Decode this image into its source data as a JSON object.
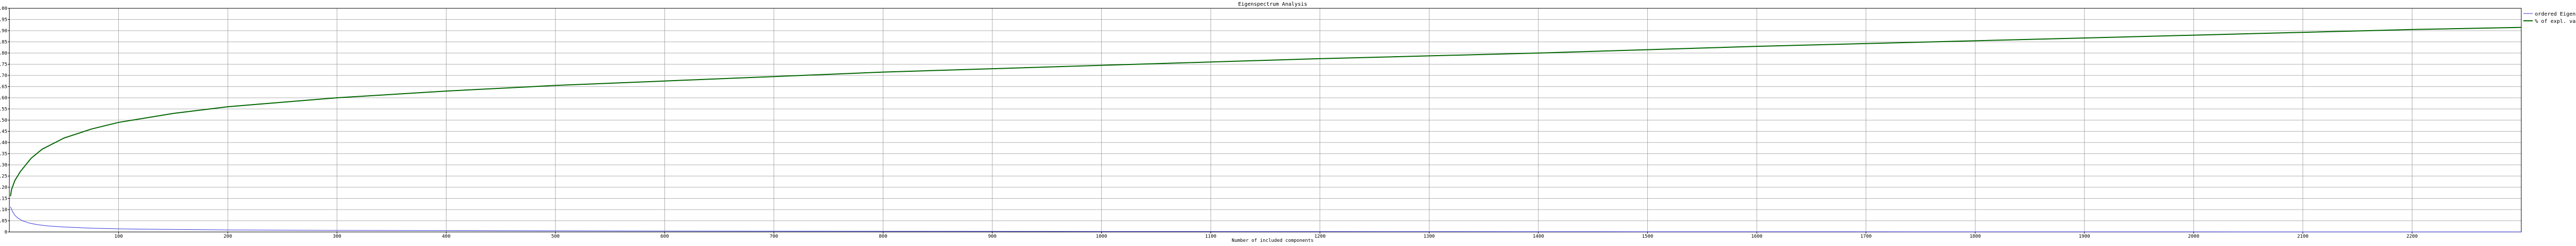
{
  "chart_data": {
    "type": "line",
    "title": "Eigenspectrum Analysis",
    "xlabel": "Number of included components",
    "ylabel": "",
    "xlim": [
      0,
      2300
    ],
    "ylim": [
      0,
      1.0
    ],
    "x_ticks": [
      100,
      200,
      300,
      400,
      500,
      600,
      700,
      800,
      900,
      1000,
      1100,
      1200,
      1300,
      1400,
      1500,
      1600,
      1700,
      1800,
      1900,
      2000,
      2100,
      2200
    ],
    "y_ticks": [
      "0",
      "0.05",
      "0.10",
      "0.15",
      "0.20",
      "0.25",
      "0.30",
      "0.35",
      "0.40",
      "0.45",
      "0.50",
      "0.55",
      "0.60",
      "0.65",
      "0.70",
      "0.75",
      "0.80",
      "0.85",
      "0.90",
      "0.95",
      "1.00"
    ],
    "grid": true,
    "legend_position": "right",
    "series": [
      {
        "name": "ordered Eigenvalues",
        "color": "#3333dd",
        "x": [
          1,
          3,
          5,
          8,
          12,
          18,
          25,
          35,
          50,
          75,
          100,
          150,
          200,
          300,
          400,
          600,
          800,
          1000,
          1500,
          2000,
          2300
        ],
        "y": [
          0.112,
          0.09,
          0.075,
          0.061,
          0.05,
          0.04,
          0.033,
          0.027,
          0.022,
          0.017,
          0.014,
          0.011,
          0.009,
          0.007,
          0.006,
          0.004,
          0.003,
          0.002,
          0.001,
          0.0005,
          0.0002
        ]
      },
      {
        "name": "% of expl. variance",
        "color": "#006600",
        "x": [
          1,
          2,
          5,
          10,
          20,
          30,
          50,
          75,
          100,
          150,
          200,
          300,
          400,
          500,
          600,
          700,
          800,
          900,
          1000,
          1200,
          1400,
          1600,
          1800,
          2000,
          2200,
          2300
        ],
        "y": [
          0.16,
          0.19,
          0.23,
          0.27,
          0.33,
          0.37,
          0.42,
          0.46,
          0.49,
          0.53,
          0.56,
          0.6,
          0.63,
          0.655,
          0.675,
          0.695,
          0.715,
          0.73,
          0.745,
          0.775,
          0.8,
          0.83,
          0.855,
          0.88,
          0.905,
          0.915
        ]
      }
    ]
  }
}
